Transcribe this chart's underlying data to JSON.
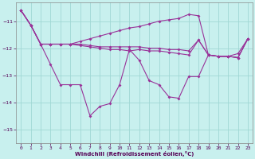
{
  "xlabel": "Windchill (Refroidissement éolien,°C)",
  "background_color": "#c8f0ee",
  "grid_color": "#a0d8d4",
  "line_color": "#993399",
  "ylim": [
    -15.5,
    -10.3
  ],
  "yticks": [
    -15,
    -14,
    -13,
    -12,
    -11
  ],
  "xticks": [
    0,
    1,
    2,
    3,
    4,
    5,
    6,
    7,
    8,
    9,
    10,
    11,
    12,
    13,
    14,
    15,
    16,
    17,
    18,
    19,
    20,
    21,
    22,
    23
  ],
  "line_top": [
    -10.6,
    -11.15,
    -11.85,
    -11.85,
    -11.85,
    -11.85,
    -11.75,
    -11.65,
    -11.55,
    -11.45,
    -11.35,
    -11.25,
    -11.2,
    -11.1,
    -11.0,
    -10.95,
    -10.9,
    -10.75,
    -10.8,
    -12.25,
    -12.3,
    -12.3,
    -12.35,
    -11.65
  ],
  "line_mid1": [
    -10.6,
    -11.15,
    -11.85,
    -11.85,
    -11.85,
    -11.85,
    -11.85,
    -11.9,
    -11.95,
    -11.95,
    -11.95,
    -11.95,
    -11.95,
    -12.0,
    -12.0,
    -12.05,
    -12.05,
    -12.1,
    -11.7,
    -12.25,
    -12.3,
    -12.3,
    -12.35,
    -11.65
  ],
  "line_mid2": [
    -10.6,
    -11.15,
    -11.85,
    -11.85,
    -11.85,
    -11.85,
    -11.9,
    -11.95,
    -12.0,
    -12.05,
    -12.05,
    -12.1,
    -12.05,
    -12.1,
    -12.1,
    -12.15,
    -12.2,
    -12.25,
    -11.7,
    -12.25,
    -12.3,
    -12.3,
    -12.35,
    -11.65
  ],
  "line_low": [
    -10.6,
    -11.15,
    -11.85,
    -12.6,
    -13.35,
    -13.35,
    -13.35,
    -14.5,
    -14.15,
    -14.05,
    -13.35,
    -12.05,
    -12.45,
    -13.2,
    -13.35,
    -13.8,
    -13.85,
    -13.05,
    -13.05,
    -12.25,
    -12.3,
    -12.3,
    -12.2,
    -11.65
  ]
}
